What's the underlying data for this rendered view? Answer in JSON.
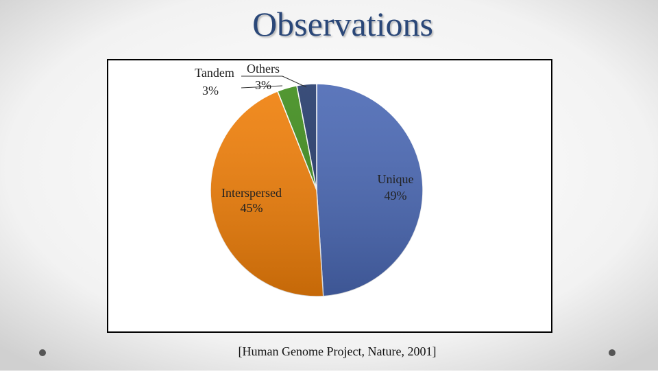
{
  "chart_data": {
    "type": "pie",
    "title": "Observations",
    "categories": [
      "Unique",
      "Interspersed",
      "Tandem",
      "Others"
    ],
    "values": [
      49,
      45,
      3,
      3
    ],
    "value_labels": [
      "49%",
      "45%",
      "3%",
      "3%"
    ],
    "colors": [
      "#4a68b4",
      "#f07f09",
      "#3f8c1c",
      "#243a6b"
    ],
    "source": "[Human Genome Project, Nature, 2001]"
  }
}
